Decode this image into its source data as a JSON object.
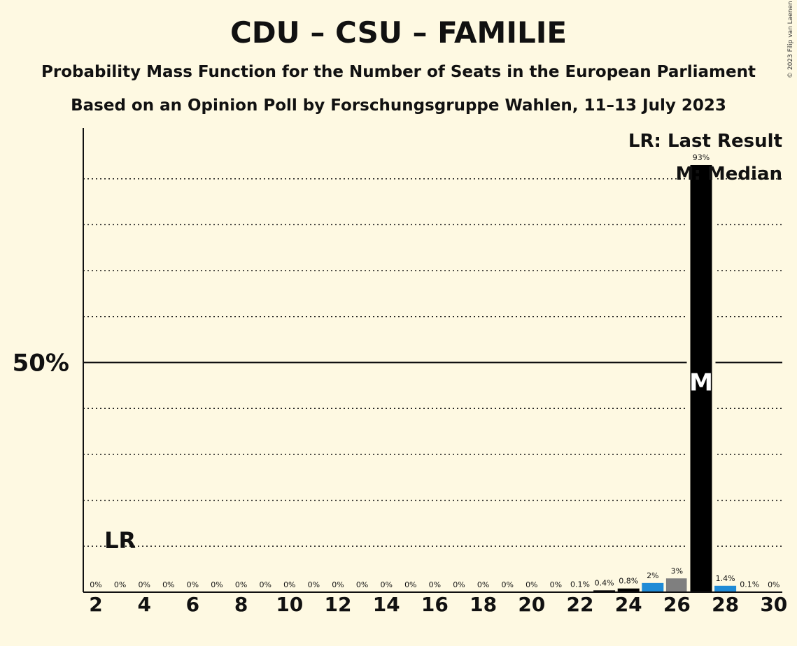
{
  "title": "CDU – CSU – FAMILIE",
  "subtitle_1": "Probability Mass Function for the Number of Seats in the European Parliament",
  "subtitle_2": "Based on an Opinion Poll by Forschungsgruppe Wahlen, 11–13 July 2023",
  "copyright": "© 2023 Filip van Laenen",
  "colors": {
    "background": "#fef9e2",
    "bar_main": "#000000",
    "bar_alt_blue": "#1f8bd6",
    "bar_alt_grey": "#7f7f7f"
  },
  "chart_data": {
    "type": "bar",
    "x": [
      2,
      3,
      4,
      5,
      6,
      7,
      8,
      9,
      10,
      11,
      12,
      13,
      14,
      15,
      16,
      17,
      18,
      19,
      20,
      21,
      22,
      23,
      24,
      25,
      26,
      27,
      28,
      29,
      30
    ],
    "values": [
      0,
      0,
      0,
      0,
      0,
      0,
      0,
      0,
      0,
      0,
      0,
      0,
      0,
      0,
      0,
      0,
      0,
      0,
      0,
      0,
      0.1,
      0.4,
      0.8,
      2,
      3,
      93,
      1.4,
      0.1,
      0
    ],
    "bar_labels": [
      "0%",
      "0%",
      "0%",
      "0%",
      "0%",
      "0%",
      "0%",
      "0%",
      "0%",
      "0%",
      "0%",
      "0%",
      "0%",
      "0%",
      "0%",
      "0%",
      "0%",
      "0%",
      "0%",
      "0%",
      "0.1%",
      "0.4%",
      "0.8%",
      "2%",
      "3%",
      "93%",
      "1.4%",
      "0.1%",
      "0%"
    ],
    "bar_colors": [
      "black",
      "black",
      "black",
      "black",
      "black",
      "black",
      "black",
      "black",
      "black",
      "black",
      "black",
      "black",
      "black",
      "black",
      "black",
      "black",
      "black",
      "black",
      "black",
      "black",
      "black",
      "black",
      "black",
      "blue",
      "grey",
      "black",
      "blue",
      "black",
      "black"
    ],
    "x_tick_labels": [
      "2",
      "4",
      "6",
      "8",
      "10",
      "12",
      "14",
      "16",
      "18",
      "20",
      "22",
      "24",
      "26",
      "28",
      "30"
    ],
    "y_tick_label": "50%",
    "ylim": [
      0,
      100
    ],
    "gridlines": [
      10,
      20,
      30,
      40,
      60,
      70,
      80,
      90
    ],
    "reference_line": 50,
    "last_result_seat": 3,
    "last_result_label": "LR",
    "median_seat": 27,
    "median_label": "M",
    "legend": {
      "last_result": "LR: Last Result",
      "median": "M: Median",
      "position": "top-right"
    }
  }
}
